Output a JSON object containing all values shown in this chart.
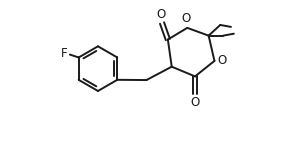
{
  "background": "#ffffff",
  "line_color": "#1a1a1a",
  "line_width": 1.4,
  "font_size": 8.5,
  "figsize": [
    2.93,
    1.47
  ],
  "dpi": 100,
  "xlim": [
    -1.5,
    9.5
  ],
  "ylim": [
    -1.0,
    6.5
  ]
}
